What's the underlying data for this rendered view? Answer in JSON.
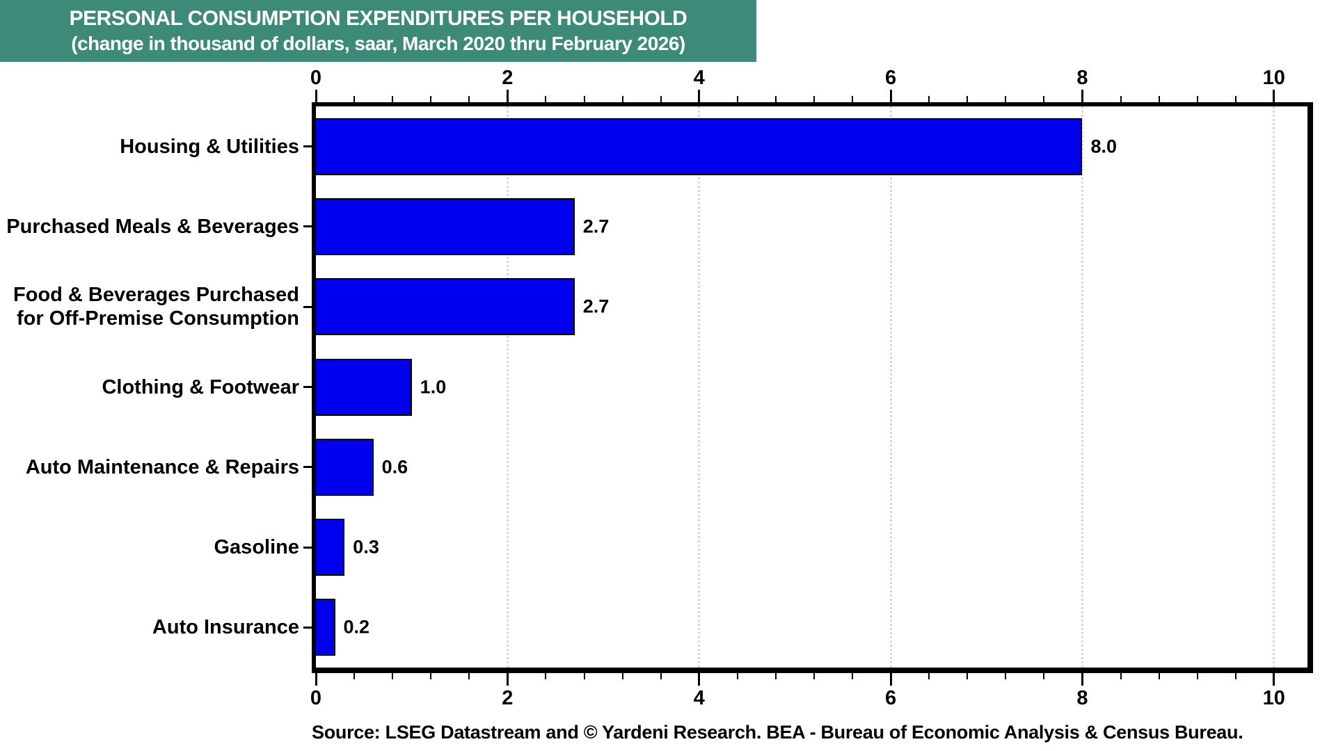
{
  "title": {
    "line1": "PERSONAL CONSUMPTION EXPENDITURES PER HOUSEHOLD",
    "line2": "(change in thousand of dollars, saar, March 2020 thru February 2026)"
  },
  "colors": {
    "banner_bg": "#3E8A78",
    "banner_text": "#FFFFFF",
    "bar_fill": "#0000EE",
    "bar_border": "#000000",
    "axis": "#000000",
    "gridline": "#D8D8D8",
    "text": "#000000",
    "background": "#FFFFFF"
  },
  "chart_data": {
    "type": "bar",
    "orientation": "horizontal",
    "title": "PERSONAL CONSUMPTION EXPENDITURES PER HOUSEHOLD",
    "subtitle": "(change in thousand of dollars, saar, March 2020 thru February 2026)",
    "categories": [
      "Housing & Utilities",
      "Purchased Meals & Beverages",
      "Food & Beverages Purchased for Off-Premise Consumption",
      "Clothing & Footwear",
      "Auto Maintenance & Repairs",
      "Gasoline",
      "Auto Insurance"
    ],
    "category_label_lines": [
      [
        "Housing & Utilities"
      ],
      [
        "Purchased Meals & Beverages"
      ],
      [
        "Food & Beverages Purchased",
        "for Off-Premise Consumption"
      ],
      [
        "Clothing & Footwear"
      ],
      [
        "Auto Maintenance & Repairs"
      ],
      [
        "Gasoline"
      ],
      [
        "Auto Insurance"
      ]
    ],
    "values": [
      8.0,
      2.7,
      2.7,
      1.0,
      0.6,
      0.3,
      0.2
    ],
    "value_labels": [
      "8.0",
      "2.7",
      "2.7",
      "1.0",
      "0.6",
      "0.3",
      "0.2"
    ],
    "xlabel": "",
    "ylabel": "",
    "xlim": [
      0,
      10.35
    ],
    "x_major_ticks": [
      0,
      2,
      4,
      6,
      8,
      10
    ],
    "x_tick_labels": [
      "0",
      "2",
      "4",
      "6",
      "8",
      "10"
    ],
    "x_minor_tick_step": 0.4,
    "grid": "vertical-dotted-at-major-ticks",
    "axis_sides_with_ticks": [
      "top",
      "bottom"
    ],
    "legend": "none"
  },
  "source": "Source: LSEG Datastream and © Yardeni Research. BEA - Bureau of Economic Analysis & Census Bureau."
}
